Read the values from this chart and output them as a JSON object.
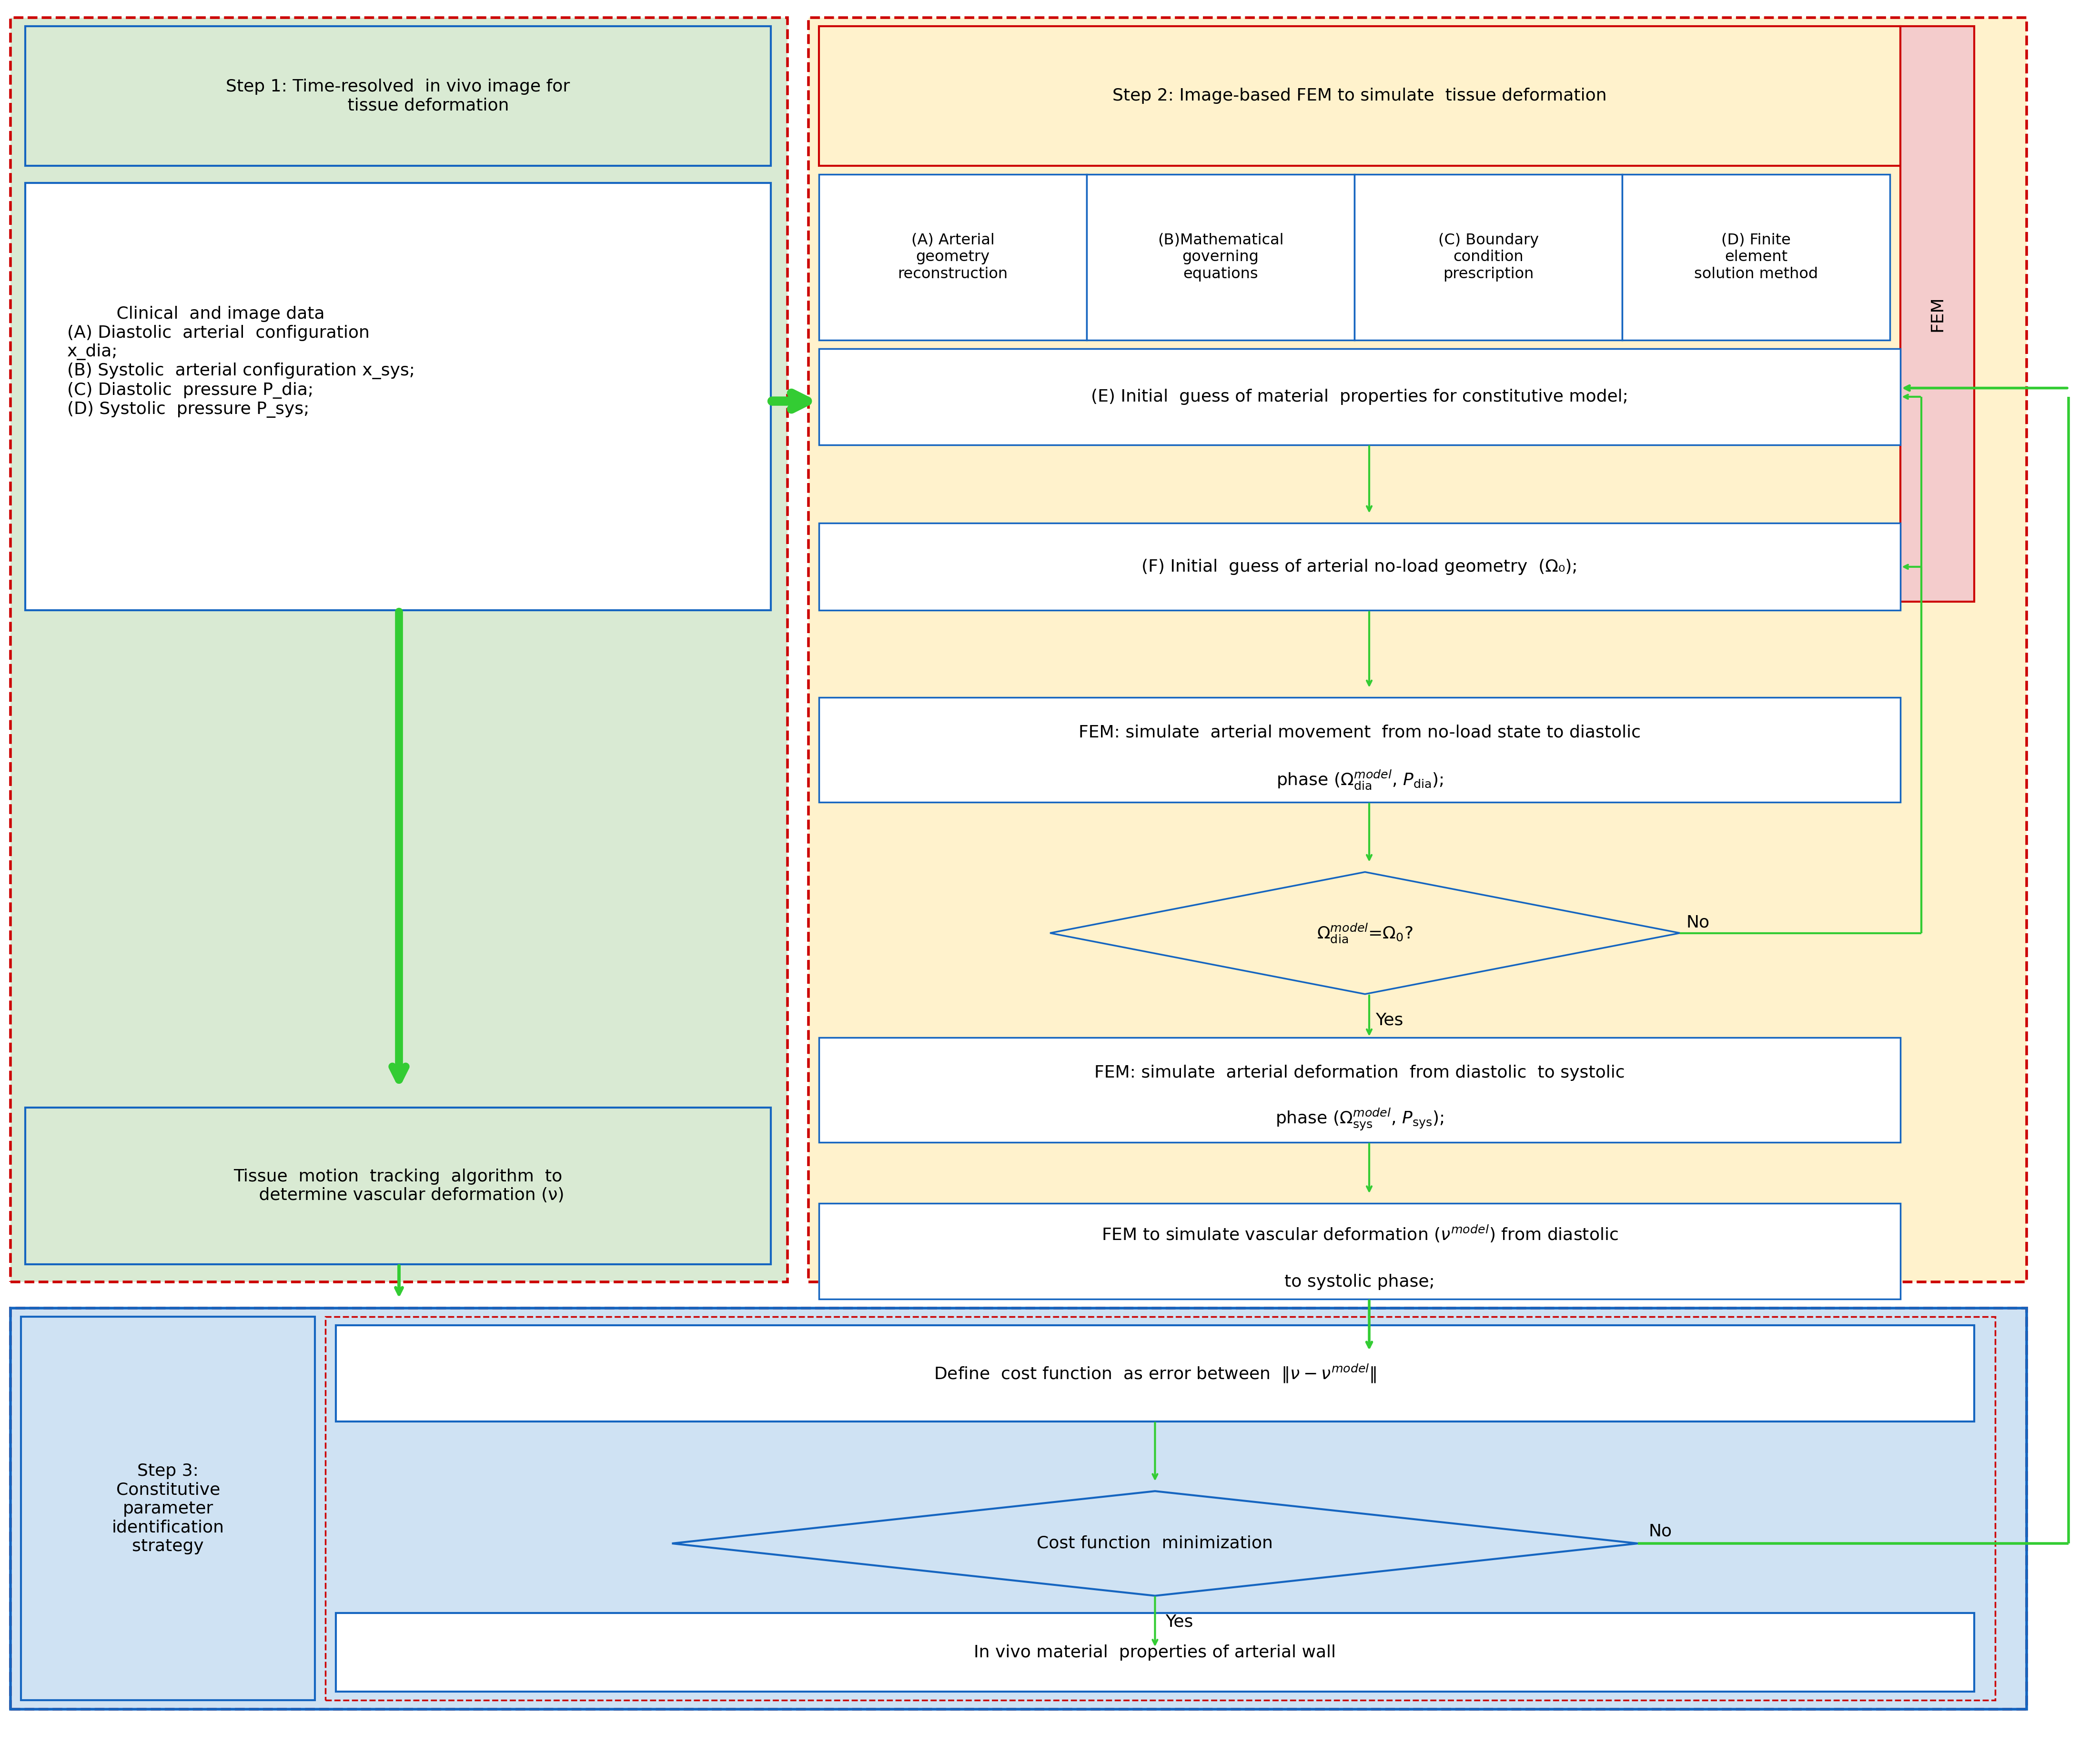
{
  "fig_width": 44.08,
  "fig_height": 36.61,
  "bg_color": "#ffffff",
  "colors": {
    "light_green_bg": "#d9ead3",
    "light_yellow_bg": "#fff2cc",
    "light_blue_bg": "#cfe2f3",
    "light_red_border": "#cc0000",
    "dark_blue_border": "#1565c0",
    "medium_blue_border": "#2196f3",
    "green_arrow": "#33cc33",
    "light_peach": "#f4cccc",
    "white_box": "#ffffff",
    "dashed_red": "#cc0000"
  },
  "step1_title": "Step 1: Time-resolved  in vivo image for\n           tissue deformation",
  "step1_content": "         Clinical  and image data\n(A) Diastolic  arterial  configuration\nx_dia;\n(B) Systolic  arterial configuration x_sys;\n(C) Diastolic  pressure P_dia;\n(D) Systolic  pressure P_sys;",
  "step1_bottom": "Tissue  motion  tracking  algorithm  to\n     determine vascular deformation (ν)",
  "step2_title": "Step 2: Image-based FEM to simulate  tissue deformation",
  "boxA": "(A) Arterial\ngeometry\nreconstruction",
  "boxB": "(B)Mathematical\ngoverning\nequations",
  "boxC": "(C) Boundary\ncondition\nprescription",
  "boxD": "(D) Finite\nelement\nsolution method",
  "boxE": "(E) Initial  guess of material  properties for constitutive model;",
  "boxF": "(F) Initial  guess of arterial no-load geometry  (Ω₀);",
  "boxG_line1": "FEM: simulate  arterial movement  from no-load state to diastolic",
  "boxH_line1": "FEM: simulate  arterial deformation  from diastolic  to systolic",
  "fem_label": "FEM",
  "step3_title": "Step 3:\nConstitutive\nparameter\nidentification\nstrategy",
  "step3_box1": "Define  cost function  as error between",
  "step3_diamond": "Cost function  minimization",
  "step3_box2": "In vivo material  properties of arterial wall",
  "no_label": "No",
  "yes_label": "Yes",
  "font_size_body": 26,
  "font_size_small": 23,
  "font_size_label": 24
}
